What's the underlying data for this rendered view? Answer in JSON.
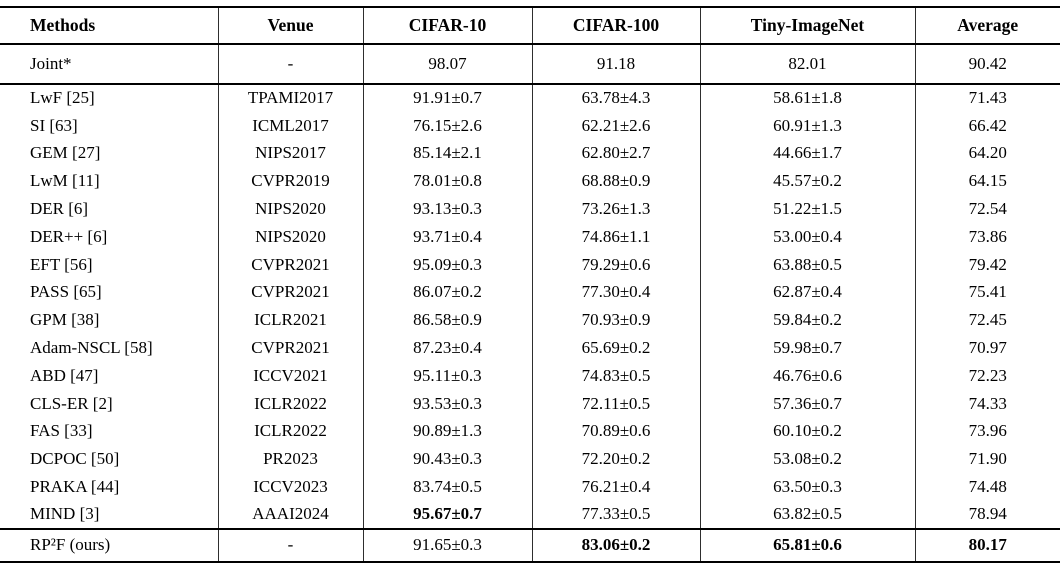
{
  "table": {
    "columns": [
      {
        "label": "Methods"
      },
      {
        "label": "Venue"
      },
      {
        "label": "CIFAR-10"
      },
      {
        "label": "CIFAR-100"
      },
      {
        "label": "Tiny-ImageNet"
      },
      {
        "label": "Average"
      }
    ],
    "sections": [
      {
        "name": "joint",
        "rows": [
          {
            "cells": [
              "Joint*",
              "-",
              "98.07",
              "91.18",
              "82.01",
              "90.42"
            ],
            "bold": []
          }
        ]
      },
      {
        "name": "main",
        "rows": [
          {
            "cells": [
              "LwF [25]",
              "TPAMI2017",
              "91.91±0.7",
              "63.78±4.3",
              "58.61±1.8",
              "71.43"
            ],
            "bold": []
          },
          {
            "cells": [
              "SI [63]",
              "ICML2017",
              "76.15±2.6",
              "62.21±2.6",
              "60.91±1.3",
              "66.42"
            ],
            "bold": []
          },
          {
            "cells": [
              "GEM [27]",
              "NIPS2017",
              "85.14±2.1",
              "62.80±2.7",
              "44.66±1.7",
              "64.20"
            ],
            "bold": []
          },
          {
            "cells": [
              "LwM [11]",
              "CVPR2019",
              "78.01±0.8",
              "68.88±0.9",
              "45.57±0.2",
              "64.15"
            ],
            "bold": []
          },
          {
            "cells": [
              "DER [6]",
              "NIPS2020",
              "93.13±0.3",
              "73.26±1.3",
              "51.22±1.5",
              "72.54"
            ],
            "bold": []
          },
          {
            "cells": [
              "DER++ [6]",
              "NIPS2020",
              "93.71±0.4",
              "74.86±1.1",
              "53.00±0.4",
              "73.86"
            ],
            "bold": []
          },
          {
            "cells": [
              "EFT [56]",
              "CVPR2021",
              "95.09±0.3",
              "79.29±0.6",
              "63.88±0.5",
              "79.42"
            ],
            "bold": []
          },
          {
            "cells": [
              "PASS [65]",
              "CVPR2021",
              "86.07±0.2",
              "77.30±0.4",
              "62.87±0.4",
              "75.41"
            ],
            "bold": []
          },
          {
            "cells": [
              "GPM [38]",
              "ICLR2021",
              "86.58±0.9",
              "70.93±0.9",
              "59.84±0.2",
              "72.45"
            ],
            "bold": []
          },
          {
            "cells": [
              "Adam-NSCL [58]",
              "CVPR2021",
              "87.23±0.4",
              "65.69±0.2",
              "59.98±0.7",
              "70.97"
            ],
            "bold": []
          },
          {
            "cells": [
              "ABD [47]",
              "ICCV2021",
              "95.11±0.3",
              "74.83±0.5",
              "46.76±0.6",
              "72.23"
            ],
            "bold": []
          },
          {
            "cells": [
              "CLS-ER [2]",
              "ICLR2022",
              "93.53±0.3",
              "72.11±0.5",
              "57.36±0.7",
              "74.33"
            ],
            "bold": []
          },
          {
            "cells": [
              "FAS [33]",
              "ICLR2022",
              "90.89±1.3",
              "70.89±0.6",
              "60.10±0.2",
              "73.96"
            ],
            "bold": []
          },
          {
            "cells": [
              "DCPOC [50]",
              "PR2023",
              "90.43±0.3",
              "72.20±0.2",
              "53.08±0.2",
              "71.90"
            ],
            "bold": []
          },
          {
            "cells": [
              "PRAKA [44]",
              "ICCV2023",
              "83.74±0.5",
              "76.21±0.4",
              "63.50±0.3",
              "74.48"
            ],
            "bold": []
          },
          {
            "cells": [
              "MIND [3]",
              "AAAI2024",
              "95.67±0.7",
              "77.33±0.5",
              "63.82±0.5",
              "78.94"
            ],
            "bold": [
              2
            ]
          }
        ]
      },
      {
        "name": "ours",
        "rows": [
          {
            "cells": [
              "RP²F (ours)",
              "-",
              "91.65±0.3",
              "83.06±0.2",
              "65.81±0.6",
              "80.17"
            ],
            "bold": [
              3,
              4,
              5
            ]
          }
        ]
      }
    ]
  }
}
